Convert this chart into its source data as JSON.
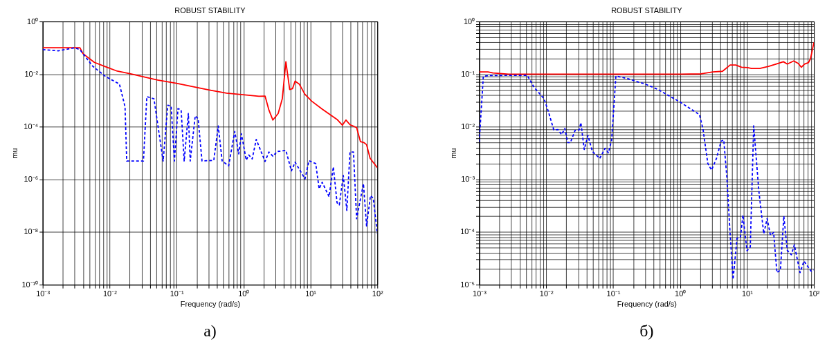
{
  "chart_data": [
    {
      "type": "line",
      "title": "ROBUST STABILITY",
      "xlabel": "Frequency (rad/s)",
      "ylabel": "mu",
      "log": "xy",
      "grid": true,
      "legend": false,
      "xlim": [
        0.001,
        100
      ],
      "ylim": [
        1e-10,
        1
      ],
      "xticks": [
        {
          "value": 0.001,
          "label": "10⁻³"
        },
        {
          "value": 0.002,
          "label": null
        },
        {
          "value": 0.003,
          "label": null
        },
        {
          "value": 0.004,
          "label": null
        },
        {
          "value": 0.005,
          "label": null
        },
        {
          "value": 0.006,
          "label": null
        },
        {
          "value": 0.007,
          "label": null
        },
        {
          "value": 0.008,
          "label": null
        },
        {
          "value": 0.009,
          "label": null
        },
        {
          "value": 0.01,
          "label": "10⁻²"
        },
        {
          "value": 0.02,
          "label": null
        },
        {
          "value": 0.03,
          "label": null
        },
        {
          "value": 0.04,
          "label": null
        },
        {
          "value": 0.05,
          "label": null
        },
        {
          "value": 0.06,
          "label": null
        },
        {
          "value": 0.07,
          "label": null
        },
        {
          "value": 0.08,
          "label": null
        },
        {
          "value": 0.09,
          "label": null
        },
        {
          "value": 0.1,
          "label": "10⁻¹"
        },
        {
          "value": 0.2,
          "label": null
        },
        {
          "value": 0.3,
          "label": null
        },
        {
          "value": 0.4,
          "label": null
        },
        {
          "value": 0.5,
          "label": null
        },
        {
          "value": 0.6,
          "label": null
        },
        {
          "value": 0.7,
          "label": null
        },
        {
          "value": 0.8,
          "label": null
        },
        {
          "value": 0.9,
          "label": null
        },
        {
          "value": 1,
          "label": "10⁰"
        },
        {
          "value": 2,
          "label": null
        },
        {
          "value": 3,
          "label": null
        },
        {
          "value": 4,
          "label": null
        },
        {
          "value": 5,
          "label": null
        },
        {
          "value": 6,
          "label": null
        },
        {
          "value": 7,
          "label": null
        },
        {
          "value": 8,
          "label": null
        },
        {
          "value": 9,
          "label": null
        },
        {
          "value": 10,
          "label": "10¹"
        },
        {
          "value": 20,
          "label": null
        },
        {
          "value": 30,
          "label": null
        },
        {
          "value": 40,
          "label": null
        },
        {
          "value": 50,
          "label": null
        },
        {
          "value": 60,
          "label": null
        },
        {
          "value": 70,
          "label": null
        },
        {
          "value": 80,
          "label": null
        },
        {
          "value": 90,
          "label": null
        },
        {
          "value": 100,
          "label": "10²"
        }
      ],
      "yticks": [
        {
          "value": 1e-10,
          "label": "10⁻¹⁰"
        },
        {
          "value": 1e-08,
          "label": "10⁻⁸"
        },
        {
          "value": 1e-06,
          "label": "10⁻⁶"
        },
        {
          "value": 0.0001,
          "label": "10⁻⁴"
        },
        {
          "value": 0.01,
          "label": "10⁻²"
        },
        {
          "value": 1,
          "label": "10⁰"
        }
      ],
      "series": [
        {
          "color": "#ff0000",
          "line_style": "solid",
          "x": [
            0.001,
            0.0036,
            0.004,
            0.0059,
            0.0087,
            0.013,
            0.02,
            0.052,
            0.1,
            0.31,
            0.56,
            1.26,
            1.7,
            2.1,
            2.4,
            2.75,
            3.3,
            3.8,
            4.3,
            4.9,
            5.4,
            5.9,
            6.8,
            8.3,
            10.5,
            15,
            25,
            30,
            34,
            39,
            49,
            56,
            63,
            69,
            78,
            100
          ],
          "values": [
            0.1,
            0.1,
            0.06,
            0.028,
            0.019,
            0.013,
            0.0105,
            0.006,
            0.0045,
            0.0025,
            0.0019,
            0.00155,
            0.00145,
            0.00147,
            0.00043,
            0.00018,
            0.00032,
            0.00115,
            0.0295,
            0.0026,
            0.0028,
            0.0054,
            0.0042,
            0.0017,
            0.00093,
            0.00047,
            0.00019,
            0.000115,
            0.00018,
            0.00012,
            9.3e-05,
            2.7e-05,
            2.5e-05,
            2.1e-05,
            6.3e-06,
            2.8e-06
          ]
        },
        {
          "color": "#0000ff",
          "line_style": "dashed",
          "x": [
            0.001,
            0.0017,
            0.003,
            0.0036,
            0.0056,
            0.0087,
            0.014,
            0.017,
            0.018,
            0.032,
            0.036,
            0.046,
            0.063,
            0.074,
            0.083,
            0.093,
            0.105,
            0.117,
            0.13,
            0.15,
            0.16,
            0.19,
            0.21,
            0.24,
            0.36,
            0.42,
            0.48,
            0.6,
            0.74,
            0.85,
            0.93,
            1.1,
            1.2,
            1.35,
            1.55,
            2.1,
            2.4,
            2.75,
            3.2,
            4.3,
            5.2,
            5.9,
            8.3,
            9.5,
            12,
            13.5,
            15,
            19,
            22,
            25,
            27,
            31,
            35,
            39,
            44,
            49,
            62,
            69,
            79,
            87,
            100
          ],
          "values": [
            0.085,
            0.077,
            0.1,
            0.085,
            0.02,
            0.0081,
            0.0042,
            0.00057,
            5e-06,
            5e-06,
            0.0014,
            0.00115,
            5e-06,
            0.00066,
            0.0006,
            5e-06,
            0.00049,
            0.00044,
            5e-06,
            0.00032,
            5e-06,
            0.00026,
            0.0002,
            5e-06,
            5.3e-06,
            0.000107,
            5e-06,
            3.3e-06,
            6.6e-05,
            9.3e-06,
            5.4e-05,
            5.4e-06,
            8.5e-06,
            6e-06,
            3.3e-05,
            4.8e-06,
            1.1e-05,
            7.6e-06,
            1.15e-05,
            1.26e-05,
            2.1e-06,
            4.5e-06,
            1.05e-06,
            5.1e-06,
            4e-06,
            4.4e-07,
            7.8e-07,
            2.2e-07,
            3e-06,
            1.3e-07,
            1.07e-07,
            1.4e-06,
            6.6e-08,
            1.1e-05,
            1.1e-05,
            3.2e-08,
            6.9e-07,
            1.7e-08,
            2.4e-07,
            1.9e-07,
            8.5e-09
          ]
        }
      ],
      "annotations": [
        "а)"
      ]
    },
    {
      "type": "line",
      "title": "ROBUST STABILITY",
      "xlabel": "Frequency (rad/s)",
      "ylabel": "mu",
      "log": "xy",
      "grid": true,
      "legend": false,
      "xlim": [
        0.001,
        100
      ],
      "ylim": [
        1e-05,
        1
      ],
      "xticks": [
        {
          "value": 0.001,
          "label": "10⁻³"
        },
        {
          "value": 0.002,
          "label": null
        },
        {
          "value": 0.003,
          "label": null
        },
        {
          "value": 0.004,
          "label": null
        },
        {
          "value": 0.005,
          "label": null
        },
        {
          "value": 0.006,
          "label": null
        },
        {
          "value": 0.007,
          "label": null
        },
        {
          "value": 0.008,
          "label": null
        },
        {
          "value": 0.009,
          "label": null
        },
        {
          "value": 0.01,
          "label": "10⁻²"
        },
        {
          "value": 0.02,
          "label": null
        },
        {
          "value": 0.03,
          "label": null
        },
        {
          "value": 0.04,
          "label": null
        },
        {
          "value": 0.05,
          "label": null
        },
        {
          "value": 0.06,
          "label": null
        },
        {
          "value": 0.07,
          "label": null
        },
        {
          "value": 0.08,
          "label": null
        },
        {
          "value": 0.09,
          "label": null
        },
        {
          "value": 0.1,
          "label": "10⁻¹"
        },
        {
          "value": 0.2,
          "label": null
        },
        {
          "value": 0.3,
          "label": null
        },
        {
          "value": 0.4,
          "label": null
        },
        {
          "value": 0.5,
          "label": null
        },
        {
          "value": 0.6,
          "label": null
        },
        {
          "value": 0.7,
          "label": null
        },
        {
          "value": 0.8,
          "label": null
        },
        {
          "value": 0.9,
          "label": null
        },
        {
          "value": 1,
          "label": "10⁰"
        },
        {
          "value": 2,
          "label": null
        },
        {
          "value": 3,
          "label": null
        },
        {
          "value": 4,
          "label": null
        },
        {
          "value": 5,
          "label": null
        },
        {
          "value": 6,
          "label": null
        },
        {
          "value": 7,
          "label": null
        },
        {
          "value": 8,
          "label": null
        },
        {
          "value": 9,
          "label": null
        },
        {
          "value": 10,
          "label": "10¹"
        },
        {
          "value": 20,
          "label": null
        },
        {
          "value": 30,
          "label": null
        },
        {
          "value": 40,
          "label": null
        },
        {
          "value": 50,
          "label": null
        },
        {
          "value": 60,
          "label": null
        },
        {
          "value": 70,
          "label": null
        },
        {
          "value": 80,
          "label": null
        },
        {
          "value": 90,
          "label": null
        },
        {
          "value": 100,
          "label": "10²"
        }
      ],
      "yticks": [
        {
          "value": 1e-05,
          "label": "10⁻⁵"
        },
        {
          "value": 2e-05,
          "label": null
        },
        {
          "value": 3e-05,
          "label": null
        },
        {
          "value": 4e-05,
          "label": null
        },
        {
          "value": 5e-05,
          "label": null
        },
        {
          "value": 6e-05,
          "label": null
        },
        {
          "value": 7e-05,
          "label": null
        },
        {
          "value": 8e-05,
          "label": null
        },
        {
          "value": 9e-05,
          "label": null
        },
        {
          "value": 0.0001,
          "label": "10⁻⁴"
        },
        {
          "value": 0.0002,
          "label": null
        },
        {
          "value": 0.0003,
          "label": null
        },
        {
          "value": 0.0004,
          "label": null
        },
        {
          "value": 0.0005,
          "label": null
        },
        {
          "value": 0.0006,
          "label": null
        },
        {
          "value": 0.0007,
          "label": null
        },
        {
          "value": 0.0008,
          "label": null
        },
        {
          "value": 0.0009,
          "label": null
        },
        {
          "value": 0.001,
          "label": "10⁻³"
        },
        {
          "value": 0.002,
          "label": null
        },
        {
          "value": 0.003,
          "label": null
        },
        {
          "value": 0.004,
          "label": null
        },
        {
          "value": 0.005,
          "label": null
        },
        {
          "value": 0.006,
          "label": null
        },
        {
          "value": 0.007,
          "label": null
        },
        {
          "value": 0.008,
          "label": null
        },
        {
          "value": 0.009,
          "label": null
        },
        {
          "value": 0.01,
          "label": "10⁻²"
        },
        {
          "value": 0.02,
          "label": null
        },
        {
          "value": 0.03,
          "label": null
        },
        {
          "value": 0.04,
          "label": null
        },
        {
          "value": 0.05,
          "label": null
        },
        {
          "value": 0.06,
          "label": null
        },
        {
          "value": 0.07,
          "label": null
        },
        {
          "value": 0.08,
          "label": null
        },
        {
          "value": 0.09,
          "label": null
        },
        {
          "value": 0.1,
          "label": "10⁻¹"
        },
        {
          "value": 0.2,
          "label": null
        },
        {
          "value": 0.3,
          "label": null
        },
        {
          "value": 0.4,
          "label": null
        },
        {
          "value": 0.5,
          "label": null
        },
        {
          "value": 0.6,
          "label": null
        },
        {
          "value": 0.7,
          "label": null
        },
        {
          "value": 0.8,
          "label": null
        },
        {
          "value": 0.9,
          "label": null
        },
        {
          "value": 1,
          "label": "10⁰"
        }
      ],
      "series": [
        {
          "color": "#ff0000",
          "line_style": "solid",
          "x": [
            0.001,
            0.00135,
            0.0016,
            0.00275,
            1,
            2.05,
            3.1,
            4.3,
            5.6,
            6.8,
            8.3,
            10.2,
            11.7,
            15.5,
            21,
            26,
            35,
            40,
            50,
            58,
            65,
            72,
            83,
            89,
            100
          ],
          "values": [
            0.11,
            0.11,
            0.105,
            0.1,
            0.1,
            0.101,
            0.11,
            0.113,
            0.149,
            0.149,
            0.135,
            0.133,
            0.128,
            0.128,
            0.14,
            0.152,
            0.172,
            0.155,
            0.178,
            0.16,
            0.135,
            0.155,
            0.166,
            0.196,
            0.4
          ]
        },
        {
          "color": "#0000ff",
          "line_style": "dashed",
          "x": [
            0.001,
            0.00115,
            0.00145,
            0.0052,
            0.0066,
            0.0093,
            0.0107,
            0.013,
            0.015,
            0.017,
            0.019,
            0.021,
            0.023,
            0.027,
            0.031,
            0.033,
            0.037,
            0.042,
            0.049,
            0.063,
            0.076,
            0.085,
            0.095,
            0.11,
            0.166,
            0.245,
            0.3,
            0.47,
            1.02,
            1.95,
            2.2,
            2.6,
            2.95,
            3.5,
            4.1,
            4.5,
            5,
            5.6,
            6.2,
            7.1,
            8,
            8.7,
            10,
            11.2,
            12.6,
            15,
            17.8,
            20,
            22.4,
            25,
            28,
            31.6,
            35.5,
            40,
            46,
            51,
            62,
            71,
            91,
            100
          ],
          "values": [
            0.0052,
            0.091,
            0.094,
            0.095,
            0.056,
            0.034,
            0.02,
            0.0087,
            0.0088,
            0.0071,
            0.0093,
            0.005,
            0.005,
            0.0085,
            0.0087,
            0.012,
            0.0037,
            0.0068,
            0.0034,
            0.0025,
            0.0039,
            0.0032,
            0.0056,
            0.092,
            0.082,
            0.07,
            0.065,
            0.051,
            0.029,
            0.017,
            0.0091,
            0.002,
            0.0015,
            0.0025,
            0.0053,
            0.0056,
            0.0011,
            9.1e-05,
            1.26e-05,
            7.6e-05,
            8.1e-05,
            0.00021,
            4.4e-05,
            5.2e-05,
            0.0104,
            0.00062,
            9.3e-05,
            0.00018,
            8.7e-05,
            9.8e-05,
            1.7e-05,
            1.9e-05,
            0.0002,
            4.5e-05,
            3.7e-05,
            5.7e-05,
            1.7e-05,
            2.8e-05,
            1.8e-05,
            1.9e-05
          ]
        }
      ],
      "annotations": [
        "б)"
      ]
    }
  ]
}
